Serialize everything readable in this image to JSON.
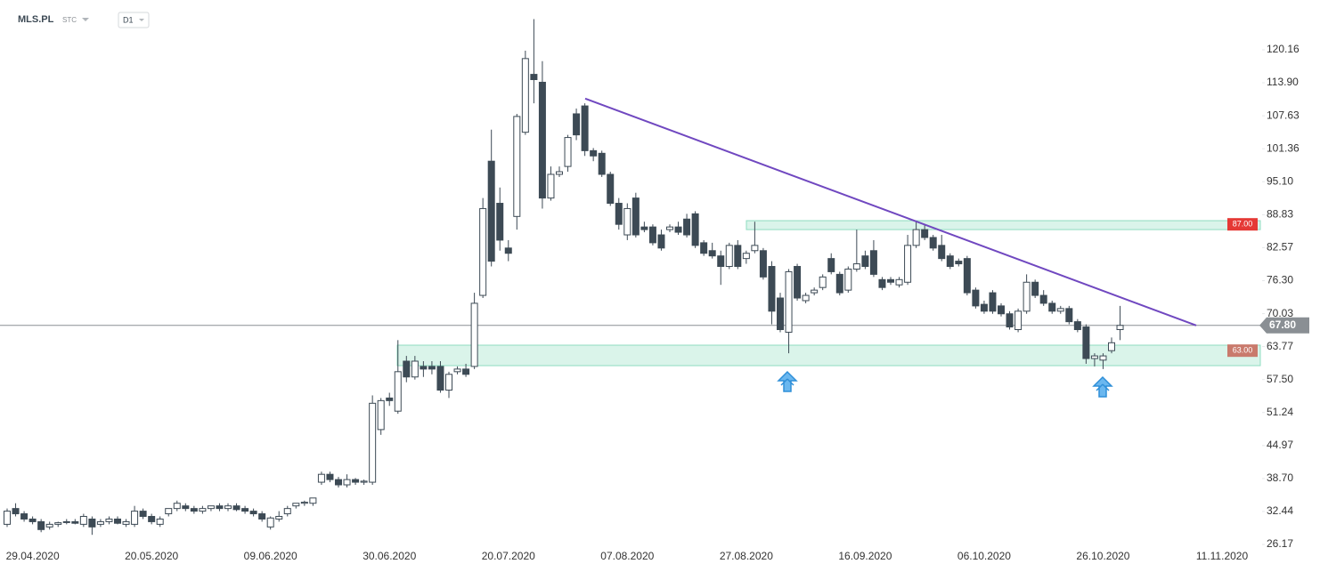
{
  "header": {
    "symbol": "MLS.PL",
    "market": "STC",
    "interval": "D1"
  },
  "chart_data": {
    "type": "candlestick",
    "categories": [
      null,
      null,
      null,
      "29.04.2020",
      null,
      null,
      null,
      null,
      null,
      null,
      null,
      null,
      null,
      null,
      null,
      null,
      null,
      "20.05.2020",
      null,
      null,
      null,
      null,
      null,
      null,
      null,
      null,
      null,
      null,
      null,
      null,
      null,
      "09.06.2020",
      null,
      null,
      null,
      null,
      null,
      null,
      null,
      null,
      null,
      null,
      null,
      null,
      null,
      "30.06.2020",
      null,
      null,
      null,
      null,
      null,
      null,
      null,
      null,
      null,
      null,
      null,
      null,
      null,
      "20.07.2020",
      null,
      null,
      null,
      null,
      null,
      null,
      null,
      null,
      null,
      null,
      null,
      null,
      null,
      "07.08.2020",
      null,
      null,
      null,
      null,
      null,
      null,
      null,
      null,
      null,
      null,
      null,
      null,
      null,
      "27.08.2020",
      null,
      null,
      null,
      null,
      null,
      null,
      null,
      null,
      null,
      null,
      null,
      null,
      null,
      "16.09.2020",
      null,
      null,
      null,
      null,
      null,
      null,
      null,
      null,
      null,
      null,
      null,
      null,
      null,
      "06.10.2020",
      null,
      null,
      null,
      null,
      null,
      null,
      null,
      null,
      null,
      null,
      null,
      null,
      null,
      "26.10.2020",
      null,
      null,
      null,
      null,
      null,
      null,
      null,
      null,
      null,
      null,
      null,
      null,
      null,
      "11.11.2020"
    ],
    "series": [
      {
        "name": "MLS.PL",
        "up_color": "#ffffff",
        "down_color": "#3d4a55",
        "edge_color": "#3d4a55",
        "open": [
          30,
          33,
          32,
          31,
          30.5,
          29.5,
          30,
          30.5,
          30.5,
          30,
          31,
          30,
          30.5,
          31,
          30,
          30,
          32.5,
          31.5,
          30,
          32,
          33,
          33.5,
          33,
          32.5,
          33,
          33.5,
          33,
          33.5,
          33,
          32.5,
          32,
          29.5,
          31,
          32,
          33.5,
          34,
          34,
          38,
          39.5,
          38.5,
          37.5,
          38.5,
          38,
          38,
          48,
          54,
          51.5,
          61,
          58,
          60,
          60,
          60,
          55.5,
          59,
          59.5,
          60,
          73.5,
          99,
          91,
          82.5,
          88.5,
          104.5,
          115.5,
          114,
          92,
          96.5,
          98,
          108,
          109.5,
          101,
          100.5,
          96.5,
          91,
          85,
          92,
          86.5,
          86.5,
          85,
          86,
          86.5,
          88,
          89,
          83.5,
          82,
          81,
          79,
          83,
          80.5,
          82,
          82,
          79,
          73,
          66.5,
          79,
          72.5,
          74,
          75,
          80.5,
          77.5,
          74.5,
          78.5,
          81,
          82,
          76.5,
          76.5,
          75.5,
          76,
          83,
          86,
          84.5,
          83,
          81,
          80,
          80.5,
          74.5,
          71.8,
          74,
          71.5,
          70,
          67,
          70.5,
          76,
          73.5,
          72,
          70.5,
          71,
          68.5,
          67.5,
          61.5,
          61.2,
          63,
          67,
          null,
          null,
          null,
          null,
          null,
          null,
          null,
          null,
          null,
          null,
          null,
          null
        ],
        "high": [
          33,
          34,
          32.5,
          31.5,
          31,
          30.5,
          30.5,
          31,
          31,
          32,
          31.5,
          31,
          31.5,
          31.5,
          31,
          33.5,
          33,
          32,
          31.5,
          33,
          34.5,
          34,
          33.5,
          33.5,
          33.5,
          34,
          34,
          34,
          33.5,
          33,
          32.5,
          31.5,
          32.5,
          33.5,
          34,
          34.5,
          35,
          40,
          40,
          39,
          39.5,
          38.8,
          38.5,
          54.5,
          54,
          55,
          65,
          62,
          62,
          61,
          61,
          61,
          59,
          60,
          60.5,
          74,
          92,
          105,
          94,
          84,
          108,
          120,
          126,
          118,
          98,
          98,
          104,
          109,
          110,
          101.5,
          101,
          97,
          92,
          91,
          93,
          87.5,
          87,
          86,
          87,
          87.5,
          89,
          89.5,
          84,
          83.5,
          82,
          83.5,
          84,
          82,
          87.5,
          82.5,
          80,
          74,
          78.5,
          79.5,
          74,
          75,
          77.5,
          81.5,
          78,
          79,
          86,
          82,
          84,
          77,
          77,
          77,
          85,
          87.5,
          87,
          85,
          85,
          81.5,
          80.5,
          81,
          75,
          72.5,
          74.5,
          72,
          70.5,
          71,
          77.5,
          76.5,
          74.5,
          72.5,
          71.5,
          71.5,
          69,
          68,
          62.5,
          62.5,
          65.5,
          71.5,
          null,
          null,
          null,
          null,
          null,
          null,
          null,
          null,
          null,
          null,
          null,
          null
        ],
        "low": [
          29.5,
          31.5,
          30.5,
          30,
          28.5,
          29,
          29.5,
          30,
          30,
          29.5,
          28,
          29.5,
          30,
          30,
          29.5,
          29.5,
          31,
          30,
          29.5,
          31.5,
          32.5,
          32.5,
          32,
          32,
          32.5,
          32.5,
          32.5,
          32.5,
          32,
          31.5,
          30.5,
          29,
          30.5,
          31.5,
          33,
          33.5,
          33.5,
          37.5,
          38,
          37,
          37,
          37.5,
          37.5,
          37.5,
          47,
          52.5,
          51,
          57,
          57.5,
          58,
          58.5,
          55,
          54,
          58.5,
          58,
          59.5,
          73,
          79,
          82,
          80,
          86,
          104,
          110,
          90,
          91.5,
          96,
          97,
          103,
          100,
          99,
          96,
          90.5,
          86,
          84,
          84.5,
          85.5,
          83,
          82,
          85.5,
          85,
          84.5,
          82.5,
          81,
          80.5,
          75.5,
          78.5,
          78.5,
          79.5,
          81.5,
          76.5,
          68,
          66.5,
          62.5,
          72.5,
          72,
          73.5,
          74.5,
          77.5,
          73.5,
          74,
          78,
          78.5,
          77,
          74.5,
          75.5,
          75,
          75.5,
          82.5,
          84,
          82,
          80,
          78.5,
          79,
          73.5,
          71,
          70,
          70,
          69.5,
          67,
          66.5,
          70,
          73,
          71.5,
          70,
          70,
          68,
          66.5,
          60.5,
          60,
          59.5,
          62.5,
          65,
          null,
          null,
          null,
          null,
          null,
          null,
          null,
          null,
          null,
          null,
          null,
          null
        ],
        "close": [
          32.5,
          32,
          31,
          30.5,
          29,
          30,
          30.3,
          30.5,
          30.2,
          31.5,
          29.5,
          30.5,
          31,
          30.2,
          30.5,
          32.5,
          31.5,
          30.5,
          31,
          33,
          34,
          33,
          32.5,
          33,
          33.5,
          33,
          33.5,
          32.8,
          32.5,
          32,
          31,
          31.2,
          31.5,
          33,
          34,
          34.2,
          35,
          39.5,
          38.5,
          37.5,
          38.5,
          38,
          38.2,
          53,
          53.5,
          53.5,
          59,
          58,
          61,
          59.5,
          59.5,
          55.5,
          58.5,
          59.5,
          58.5,
          72,
          90,
          80,
          84,
          81.5,
          107.5,
          118.5,
          114.5,
          92,
          96.5,
          97,
          103.5,
          104,
          101,
          100,
          96.5,
          91,
          87,
          90,
          85,
          86,
          83.5,
          82.5,
          86.5,
          85.5,
          85,
          83,
          81.5,
          81,
          79,
          83,
          79,
          81.5,
          83,
          77,
          70.5,
          67,
          78,
          73,
          73.5,
          74.5,
          77,
          78,
          74,
          78.5,
          79.5,
          79,
          77.5,
          75,
          76,
          76.5,
          83,
          86,
          84.5,
          82.5,
          80.5,
          79,
          79.5,
          74,
          71.5,
          70.5,
          70.5,
          70,
          67.5,
          70.5,
          76,
          73.5,
          72,
          70.5,
          71,
          68.5,
          67,
          61.5,
          62,
          62,
          64.5,
          67.8,
          null,
          null,
          null,
          null,
          null,
          null,
          null,
          null,
          null,
          null,
          null,
          null
        ]
      }
    ],
    "ylim": [
      23.98,
      129.63
    ],
    "yticks": [
      26.17,
      32.44,
      {
        "value": 38.7,
        "label": "38.70"
      },
      44.97,
      51.24,
      {
        "value": 57.5,
        "label": "57.50"
      },
      63.77,
      70.03,
      {
        "value": 76.3,
        "label": "76.30"
      },
      82.57,
      88.83,
      {
        "value": 95.1,
        "label": "95.10"
      },
      101.36,
      107.63,
      {
        "value": 113.9,
        "label": "113.90"
      },
      120.16
    ],
    "grid": false,
    "last_price": {
      "value": 67.8,
      "label": "67.80",
      "color": "#8a8f94"
    },
    "zones": [
      {
        "low": 86.0,
        "high": 87.7,
        "label": {
          "value": 87,
          "label": "87.00"
        },
        "color": "#e53935"
      },
      {
        "low": 60.15,
        "high": 64.04,
        "label": {
          "value": 63,
          "label": "63.00"
        },
        "color": "#c97a6c"
      }
    ],
    "trendline": {
      "values": [
        110.9,
        67.8
      ],
      "color": "#7048c0"
    }
  }
}
